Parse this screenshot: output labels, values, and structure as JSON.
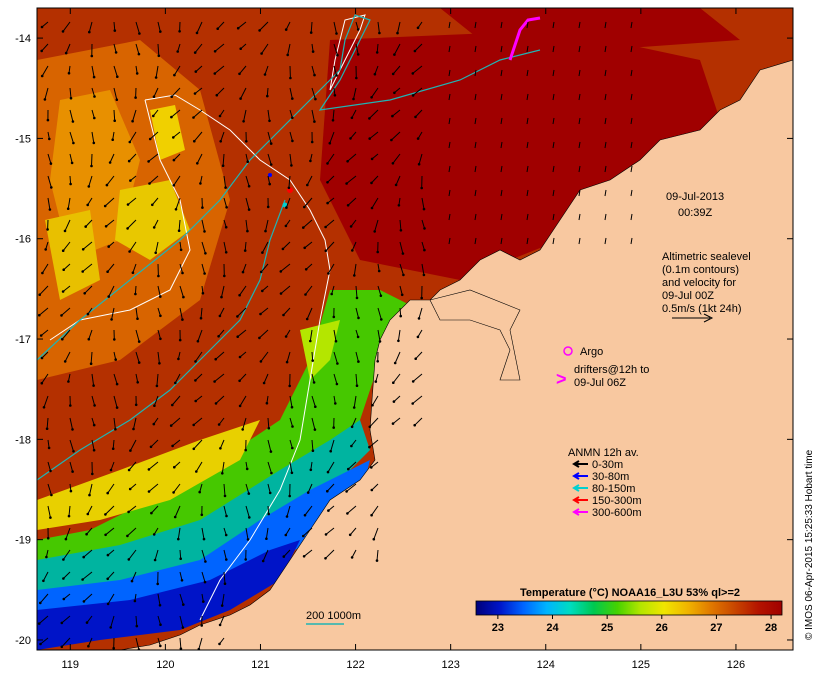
{
  "map": {
    "date_line1": "09-Jul-2013",
    "date_line2": "00:39Z",
    "altimetry_legend": [
      "Altimetric sealevel",
      "(0.1m contours)",
      "and velocity for",
      "09-Jul 00Z",
      "0.5m/s (1kt 24h)"
    ],
    "argo_label": "Argo",
    "drifters_label": [
      "drifters@12h to",
      "09-Jul 06Z"
    ],
    "drifter_symbol": ">",
    "anmn_title": "ANMN 12h av.",
    "anmn_items": [
      {
        "label": "0-30m",
        "color": "#000000"
      },
      {
        "label": "30-80m",
        "color": "#0000ff"
      },
      {
        "label": "80-150m",
        "color": "#00d0d0"
      },
      {
        "label": "150-300m",
        "color": "#ff0000"
      },
      {
        "label": "300-600m",
        "color": "#ff00ff"
      }
    ],
    "isobath_label": "200  1000m",
    "colorbar_title": "Temperature (°C) NOAA16_L3U 53% ql>=2",
    "colorbar_ticks": [
      "23",
      "24",
      "25",
      "26",
      "27",
      "28"
    ],
    "colorbar_range": [
      22.6,
      28.2
    ],
    "colorbar_colors": [
      "#00007a",
      "#0014c8",
      "#0064ff",
      "#00b4ff",
      "#00dcc0",
      "#00c850",
      "#46d200",
      "#b4e600",
      "#f0e600",
      "#f0b400",
      "#e07800",
      "#c84600",
      "#b41400",
      "#a00000"
    ],
    "credit": "© IMOS 06-Apr-2015 15:25:33 Hobart time",
    "lon_ticks": [
      "119",
      "120",
      "121",
      "122",
      "123",
      "124",
      "125",
      "126"
    ],
    "lat_ticks": [
      "-14",
      "-15",
      "-16",
      "-17",
      "-18",
      "-19",
      "-20"
    ],
    "lon_range": [
      118.65,
      126.6
    ],
    "lat_range": [
      -20.1,
      -13.7
    ],
    "land_color": "#f8c8a0"
  }
}
